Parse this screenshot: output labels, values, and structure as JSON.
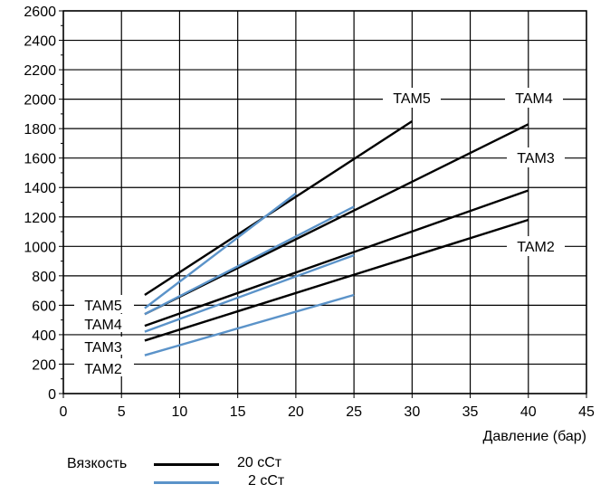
{
  "chart_data": {
    "type": "line",
    "title": "",
    "xlabel": "Давление (бар)",
    "ylabel": "",
    "xlim": [
      0,
      45
    ],
    "ylim": [
      0,
      2600
    ],
    "xticks": [
      "0",
      "5",
      "10",
      "15",
      "20",
      "25",
      "30",
      "35",
      "40",
      "45"
    ],
    "yticks": [
      "0",
      "200",
      "400",
      "600",
      "800",
      "1000",
      "1200",
      "1400",
      "1600",
      "1800",
      "2000",
      "2200",
      "2400",
      "2600"
    ],
    "grid": true,
    "colors": {
      "viscosity_20": "#000000",
      "viscosity_2": "#5b93c9"
    },
    "series": [
      {
        "name": "TAM5",
        "viscosity": "20",
        "x": [
          7,
          30
        ],
        "y": [
          670,
          1850
        ]
      },
      {
        "name": "TAM4",
        "viscosity": "20",
        "x": [
          7,
          40
        ],
        "y": [
          540,
          1830
        ]
      },
      {
        "name": "TAM3",
        "viscosity": "20",
        "x": [
          7,
          40
        ],
        "y": [
          460,
          1380
        ]
      },
      {
        "name": "TAM2",
        "viscosity": "20",
        "x": [
          7,
          40
        ],
        "y": [
          360,
          1180
        ]
      },
      {
        "name": "TAM5",
        "viscosity": "2",
        "x": [
          7,
          20
        ],
        "y": [
          580,
          1360
        ]
      },
      {
        "name": "TAM4",
        "viscosity": "2",
        "x": [
          7,
          25
        ],
        "y": [
          540,
          1270
        ]
      },
      {
        "name": "TAM3",
        "viscosity": "2",
        "x": [
          7,
          25
        ],
        "y": [
          420,
          940
        ]
      },
      {
        "name": "TAM2",
        "viscosity": "2",
        "x": [
          7,
          25
        ],
        "y": [
          260,
          670
        ]
      }
    ],
    "annotations_20": [
      "TAM5",
      "TAM4",
      "TAM3",
      "TAM2"
    ],
    "annotations_2": [
      "TAM5",
      "TAM4",
      "TAM3",
      "TAM2"
    ],
    "legend": {
      "placement": "bottom-left",
      "title": "Вязкость",
      "items": [
        {
          "label": "20  cСт",
          "color": "#000000"
        },
        {
          "label": "2  cСт",
          "color": "#5b93c9"
        }
      ]
    }
  }
}
